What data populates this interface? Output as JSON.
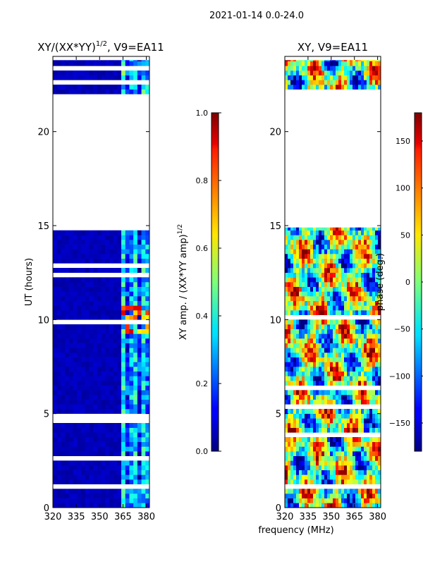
{
  "suptitle": "2021-01-14 0.0-24.0",
  "shared_xlabel": "frequency (MHz)",
  "chart_data": [
    {
      "type": "heatmap",
      "title": "XY/(XX*YY)^1/2, V9=EA11",
      "title_main": "XY/(XX*YY)",
      "title_sup": "1/2",
      "title_rest": ", V9=EA11",
      "ylabel": "UT (hours)",
      "xlim": [
        320,
        382
      ],
      "ylim": [
        0,
        24
      ],
      "xticks": [
        320,
        335,
        350,
        365,
        380
      ],
      "yticks": [
        0,
        5,
        10,
        15,
        20
      ],
      "data_bands_ut": [
        [
          0.0,
          14.9
        ],
        [
          22.0,
          23.8
        ]
      ],
      "colorbar": {
        "label_main": "XY amp. / (XX*YY amp)",
        "label_sup": "1/2",
        "min": 0.0,
        "max": 1.0,
        "ticks": [
          0.0,
          0.2,
          0.4,
          0.6,
          0.8,
          1.0
        ],
        "tick_labels": [
          "0.0",
          "0.2",
          "0.4",
          "0.6",
          "0.8",
          "1.0"
        ]
      },
      "colormap": "jet"
    },
    {
      "type": "heatmap",
      "title": "XY, V9=EA11",
      "ylabel": "",
      "xlim": [
        320,
        382
      ],
      "ylim": [
        0,
        24
      ],
      "xticks": [
        320,
        335,
        350,
        365,
        380
      ],
      "yticks": [
        0,
        5,
        10,
        15,
        20
      ],
      "data_bands_ut": [
        [
          0.0,
          14.9
        ],
        [
          22.0,
          23.8
        ]
      ],
      "colorbar": {
        "label_main": "phase (deg.)",
        "min": -180,
        "max": 180,
        "ticks": [
          -150,
          -100,
          -50,
          0,
          50,
          100,
          150
        ],
        "tick_labels": [
          "−150",
          "−100",
          "−50",
          "0",
          "50",
          "100",
          "150"
        ]
      },
      "colormap": "jet"
    }
  ]
}
